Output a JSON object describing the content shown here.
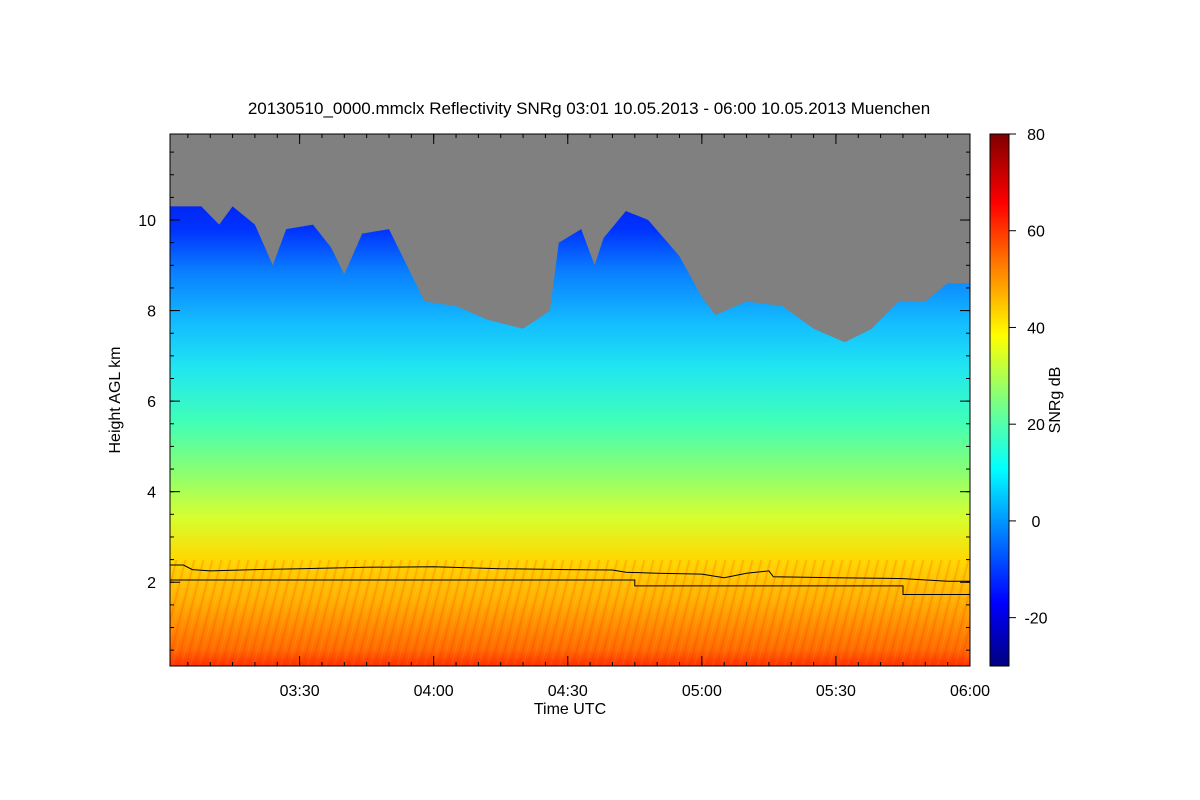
{
  "chart_data": {
    "type": "heatmap",
    "title": "20130510_0000.mmclx Reflectivity SNRg   03:01 10.05.2013 - 06:00 10.05.2013 Muenchen",
    "xlabel": "Time UTC",
    "ylabel": "Height AGL km",
    "colorbar_label": "SNRg dB",
    "xlim": [
      "03:01",
      "06:00"
    ],
    "ylim": [
      0.15,
      11.9
    ],
    "x_ticks": [
      "03:30",
      "04:00",
      "04:30",
      "05:00",
      "05:30",
      "06:00"
    ],
    "y_ticks": [
      "2",
      "4",
      "6",
      "8",
      "10"
    ],
    "colorbar_range": [
      -30,
      80
    ],
    "colorbar_ticks": [
      "-20",
      "0",
      "20",
      "40",
      "60",
      "80"
    ],
    "colormap": [
      "#00007f",
      "#0000ff",
      "#007fff",
      "#00ffff",
      "#7fff7f",
      "#ffff00",
      "#ff7f00",
      "#ff0000",
      "#7f0000"
    ],
    "no_data_color": "#808080",
    "echo_top_km": [
      {
        "t": "03:01",
        "h": 10.3
      },
      {
        "t": "03:08",
        "h": 10.3
      },
      {
        "t": "03:12",
        "h": 9.9
      },
      {
        "t": "03:15",
        "h": 10.3
      },
      {
        "t": "03:20",
        "h": 9.9
      },
      {
        "t": "03:24",
        "h": 9.0
      },
      {
        "t": "03:27",
        "h": 9.8
      },
      {
        "t": "03:33",
        "h": 9.9
      },
      {
        "t": "03:37",
        "h": 9.4
      },
      {
        "t": "03:40",
        "h": 8.8
      },
      {
        "t": "03:44",
        "h": 9.7
      },
      {
        "t": "03:50",
        "h": 9.8
      },
      {
        "t": "03:55",
        "h": 8.8
      },
      {
        "t": "03:58",
        "h": 8.2
      },
      {
        "t": "04:05",
        "h": 8.1
      },
      {
        "t": "04:12",
        "h": 7.8
      },
      {
        "t": "04:20",
        "h": 7.6
      },
      {
        "t": "04:26",
        "h": 8.0
      },
      {
        "t": "04:28",
        "h": 9.5
      },
      {
        "t": "04:33",
        "h": 9.8
      },
      {
        "t": "04:36",
        "h": 9.0
      },
      {
        "t": "04:38",
        "h": 9.6
      },
      {
        "t": "04:43",
        "h": 10.2
      },
      {
        "t": "04:48",
        "h": 10.0
      },
      {
        "t": "04:55",
        "h": 9.2
      },
      {
        "t": "05:00",
        "h": 8.3
      },
      {
        "t": "05:03",
        "h": 7.9
      },
      {
        "t": "05:10",
        "h": 8.2
      },
      {
        "t": "05:18",
        "h": 8.1
      },
      {
        "t": "05:25",
        "h": 7.6
      },
      {
        "t": "05:32",
        "h": 7.3
      },
      {
        "t": "05:38",
        "h": 7.6
      },
      {
        "t": "05:44",
        "h": 8.2
      },
      {
        "t": "05:50",
        "h": 8.2
      },
      {
        "t": "05:55",
        "h": 8.6
      },
      {
        "t": "06:00",
        "h": 8.6
      }
    ],
    "line_top_km": [
      {
        "t": "03:01",
        "h": 2.38
      },
      {
        "t": "03:04",
        "h": 2.38
      },
      {
        "t": "03:06",
        "h": 2.28
      },
      {
        "t": "03:10",
        "h": 2.25
      },
      {
        "t": "03:20",
        "h": 2.28
      },
      {
        "t": "03:30",
        "h": 2.3
      },
      {
        "t": "03:45",
        "h": 2.33
      },
      {
        "t": "04:00",
        "h": 2.34
      },
      {
        "t": "04:15",
        "h": 2.3
      },
      {
        "t": "04:30",
        "h": 2.28
      },
      {
        "t": "04:40",
        "h": 2.27
      },
      {
        "t": "04:43",
        "h": 2.22
      },
      {
        "t": "04:50",
        "h": 2.2
      },
      {
        "t": "05:00",
        "h": 2.18
      },
      {
        "t": "05:05",
        "h": 2.1
      },
      {
        "t": "05:10",
        "h": 2.2
      },
      {
        "t": "05:15",
        "h": 2.25
      },
      {
        "t": "05:16",
        "h": 2.12
      },
      {
        "t": "05:30",
        "h": 2.1
      },
      {
        "t": "05:45",
        "h": 2.08
      },
      {
        "t": "05:55",
        "h": 2.02
      },
      {
        "t": "06:00",
        "h": 2.02
      }
    ],
    "line_lower_km": [
      {
        "t": "03:01",
        "h": 2.05
      },
      {
        "t": "04:45",
        "h": 2.05
      },
      {
        "t": "04:45",
        "h": 1.92
      },
      {
        "t": "05:45",
        "h": 1.92
      },
      {
        "t": "05:45",
        "h": 1.73
      },
      {
        "t": "06:00",
        "h": 1.73
      }
    ]
  }
}
